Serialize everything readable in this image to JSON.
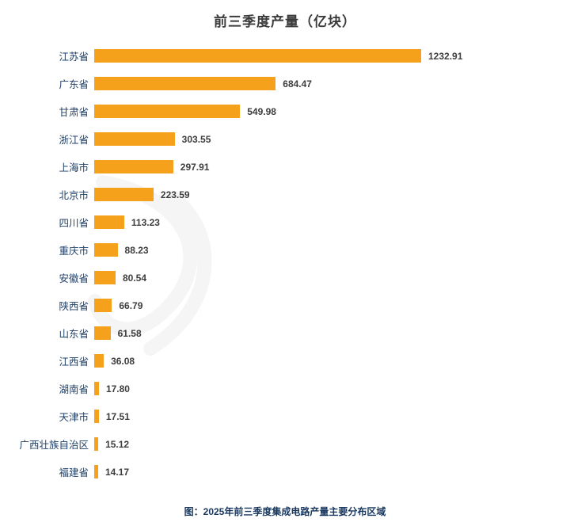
{
  "page": {
    "caption": "图：2025年前三季度集成电路产量主要分布区域"
  },
  "colors": {
    "bar": "#f5a11c",
    "category_label": "#1f4068",
    "value_label": "#3d3d3d",
    "title": "#3b3b3b",
    "caption": "#17375e"
  },
  "chart_data": {
    "type": "bar",
    "orientation": "horizontal",
    "title": "前三季度产量（亿块）",
    "xlabel": "",
    "ylabel": "",
    "xlim": [
      0,
      1300
    ],
    "grid": false,
    "legend": false,
    "value_label_format": "2-decimals",
    "categories": [
      "江苏省",
      "广东省",
      "甘肃省",
      "浙江省",
      "上海市",
      "北京市",
      "四川省",
      "重庆市",
      "安徽省",
      "陕西省",
      "山东省",
      "江西省",
      "湖南省",
      "天津市",
      "广西壮族自治区",
      "福建省"
    ],
    "values": [
      1232.91,
      684.47,
      549.98,
      303.55,
      297.91,
      223.59,
      113.23,
      88.23,
      80.54,
      66.79,
      61.58,
      36.08,
      17.8,
      17.51,
      15.12,
      14.17
    ]
  }
}
